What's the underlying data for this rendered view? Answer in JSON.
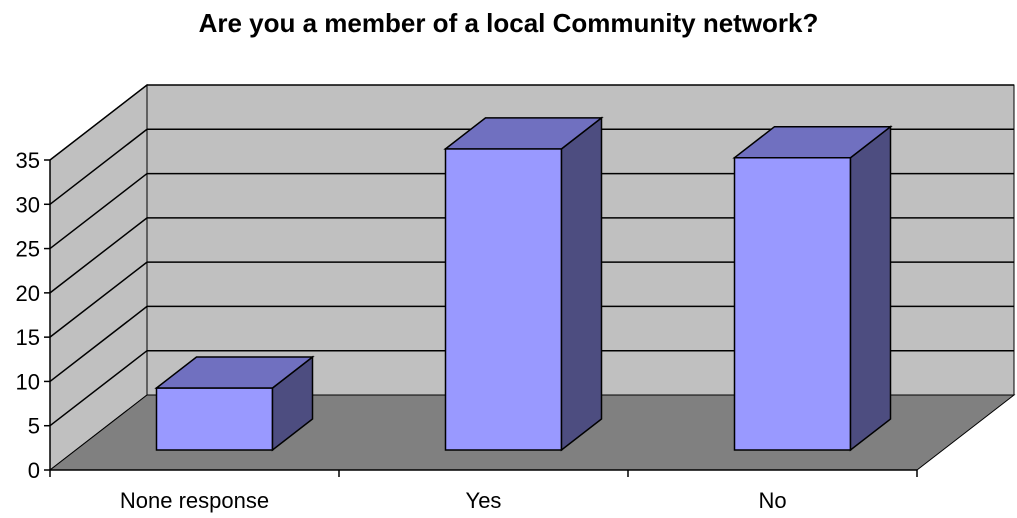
{
  "chart_data": {
    "type": "bar",
    "title": "Are you a member of a local Community network?",
    "categories": [
      "None response",
      "Yes",
      "No"
    ],
    "values": [
      7,
      34,
      33
    ],
    "ylim": [
      0,
      35
    ],
    "yticks": [
      0,
      5,
      10,
      15,
      20,
      25,
      30,
      35
    ],
    "grid": true,
    "legend": "none",
    "three_d": true,
    "colors": {
      "bar_front": "#9999ff",
      "bar_top": "#7070c0",
      "bar_side": "#4d4d80",
      "wall": "#c0c0c0",
      "floor": "#808080",
      "grid": "#000000"
    }
  }
}
